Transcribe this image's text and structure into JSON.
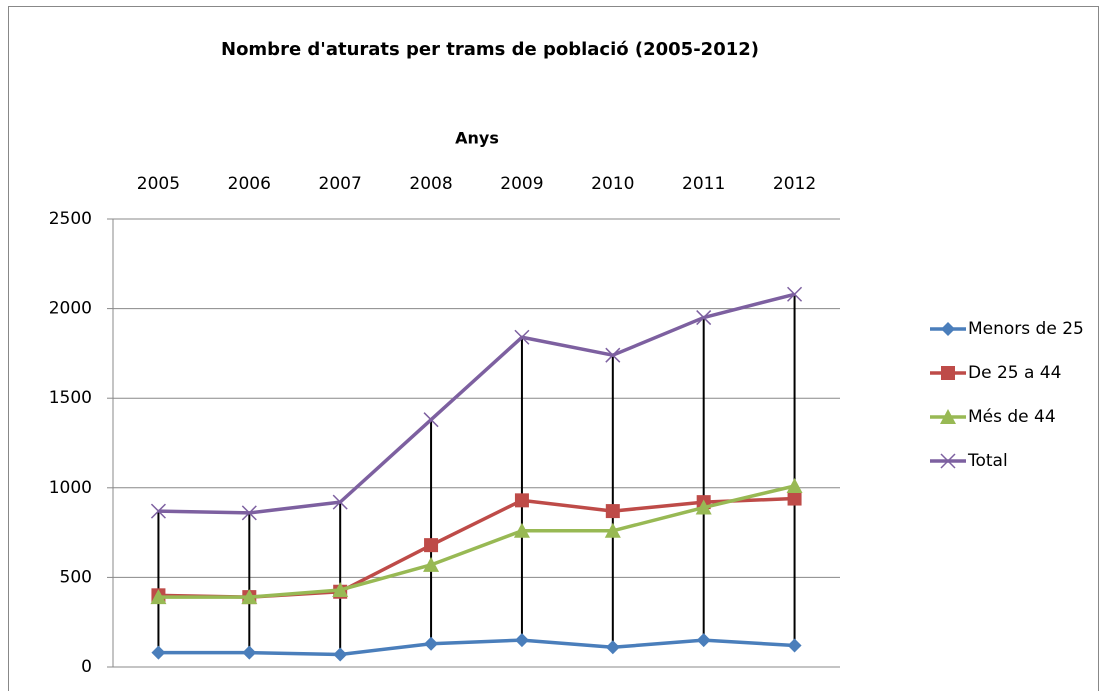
{
  "chart_data": {
    "type": "line",
    "title": "Nombre d'aturats per trams de població (2005-2012)",
    "x_label": "Anys",
    "categories": [
      "2005",
      "2006",
      "2007",
      "2008",
      "2009",
      "2010",
      "2011",
      "2012"
    ],
    "series": [
      {
        "name": "Menors de 25",
        "color": "#4a7ebb",
        "marker": "diamond",
        "values": [
          80,
          80,
          70,
          130,
          150,
          110,
          150,
          120
        ]
      },
      {
        "name": "De 25 a 44",
        "color": "#be4b48",
        "marker": "square",
        "values": [
          400,
          390,
          420,
          680,
          930,
          870,
          920,
          940
        ]
      },
      {
        "name": "Més de 44",
        "color": "#98b954",
        "marker": "triangle",
        "values": [
          390,
          390,
          430,
          570,
          760,
          760,
          890,
          1010
        ]
      },
      {
        "name": "Total",
        "color": "#7d60a0",
        "marker": "x",
        "values": [
          870,
          860,
          920,
          1380,
          1840,
          1740,
          1950,
          2080
        ]
      }
    ],
    "ylim": [
      0,
      2500
    ],
    "yticks": [
      0,
      500,
      1000,
      1500,
      2000,
      2500
    ],
    "grid": true,
    "legend": "right",
    "high_low_lines": true
  }
}
